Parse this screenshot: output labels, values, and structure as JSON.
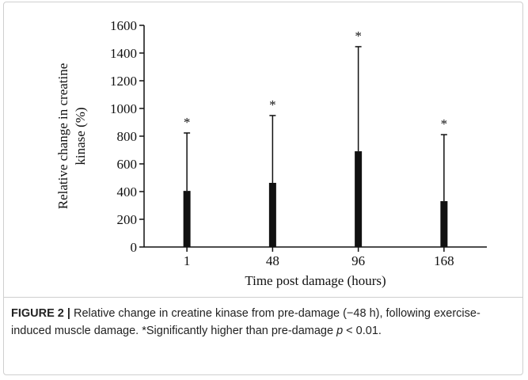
{
  "chart_data": {
    "type": "bar",
    "xlabel": "Time post damage (hours)",
    "ylabel": [
      "Relative change in creatine",
      "kinase (%)"
    ],
    "categories": [
      "1",
      "48",
      "96",
      "168"
    ],
    "values": [
      405,
      463,
      691,
      331
    ],
    "errors": [
      418,
      486,
      755,
      480
    ],
    "annotations": [
      "*",
      "*",
      "*",
      "*"
    ],
    "color": "#111111",
    "ylim": [
      0,
      1600
    ],
    "yticks": [
      0,
      200,
      400,
      600,
      800,
      1000,
      1200,
      1400,
      1600
    ]
  },
  "caption": {
    "label": "FIGURE 2 |",
    "text": [
      " Relative change in creatine kinase from pre-damage (−48 h), following exercise-induced muscle damage. *Significantly higher than pre-damage ",
      "p",
      " < 0.01."
    ]
  }
}
